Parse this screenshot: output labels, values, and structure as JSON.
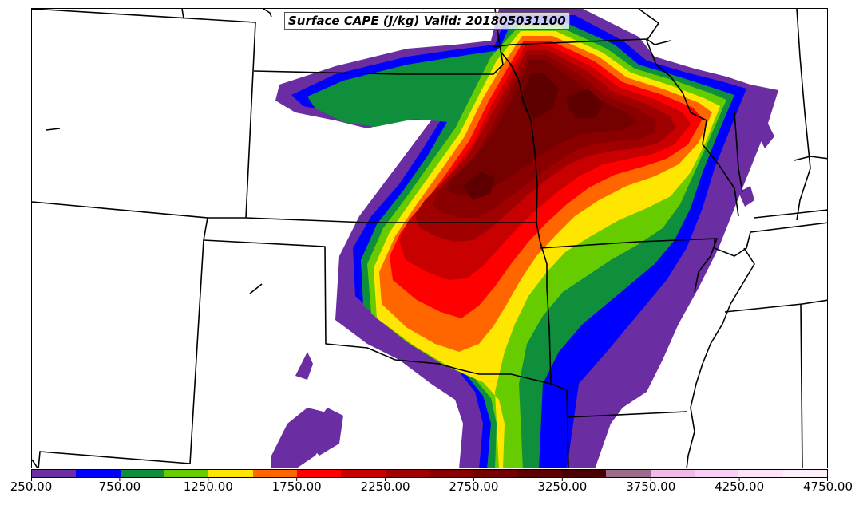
{
  "title": "Surface CAPE (J/kg) Valid: 201805031100",
  "colorbar": {
    "levels": [
      250,
      500,
      750,
      1000,
      1250,
      1500,
      1750,
      2000,
      2250,
      2500,
      2750,
      3000,
      3250,
      3500,
      3750,
      4000,
      4250,
      4500,
      4750
    ],
    "colors": [
      "#6a2ea2",
      "#0000ff",
      "#0f8e3c",
      "#66cc00",
      "#ffe600",
      "#ff6600",
      "#ff0000",
      "#c80000",
      "#a00000",
      "#8a0000",
      "#740000",
      "#5e0000",
      "#4a0000",
      "#9c6a8a",
      "#f0b9e8",
      "#f7cff2",
      "#fbe3f8",
      "#fdf0fb"
    ],
    "labels": [
      "250.00",
      "750.00",
      "1250.00",
      "1750.00",
      "2250.00",
      "2750.00",
      "3250.00",
      "3750.00",
      "4250.00",
      "4750.00"
    ]
  }
}
